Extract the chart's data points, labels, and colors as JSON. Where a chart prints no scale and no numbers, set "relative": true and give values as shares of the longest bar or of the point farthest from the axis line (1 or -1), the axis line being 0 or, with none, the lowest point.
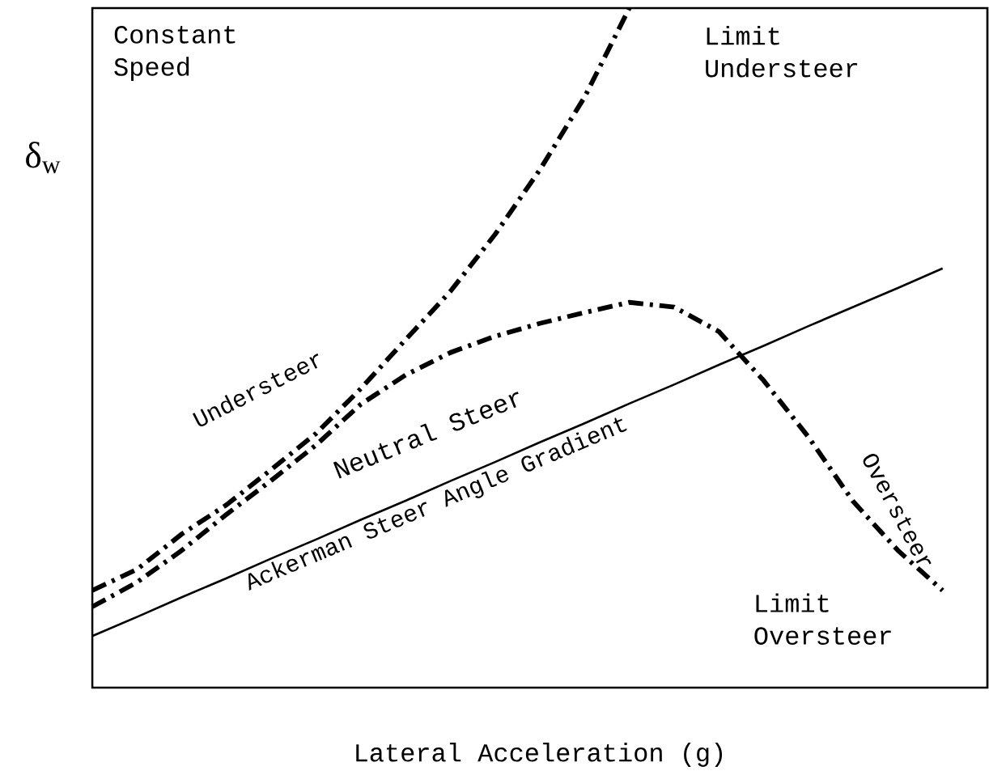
{
  "chart_data": {
    "type": "line",
    "relative": true,
    "xlabel": "Lateral Acceleration (g)",
    "ylabel": "δ$_{w}$",
    "categories": [
      null,
      null,
      null,
      null,
      null,
      null,
      null,
      null,
      null,
      null,
      null,
      null,
      null,
      null,
      null,
      null,
      null,
      null,
      null,
      null,
      null
    ],
    "series": [
      {
        "name": "Understeer",
        "color": "#000000",
        "line_style": "dashdot",
        "values": [
          0.143,
          0.174,
          0.226,
          0.269,
          0.321,
          0.374,
          0.44,
          0.512,
          0.583,
          0.667,
          0.762,
          0.869,
          1.0,
          null,
          null,
          null,
          null,
          null,
          null,
          null,
          null
        ]
      },
      {
        "name": "Oversteer",
        "color": "#000000",
        "line_style": "dashdot",
        "values": [
          0.119,
          0.155,
          0.202,
          0.255,
          0.305,
          0.357,
          0.417,
          0.46,
          0.493,
          0.517,
          0.536,
          0.552,
          0.567,
          0.56,
          0.524,
          0.452,
          0.369,
          0.274,
          0.202,
          0.143,
          null
        ]
      },
      {
        "name": "Ackerman Steer Angle Gradient",
        "color": "#000000",
        "line_style": "solid",
        "values": [
          0.076,
          0.104,
          0.133,
          0.161,
          0.19,
          0.218,
          0.247,
          0.275,
          0.304,
          0.332,
          0.361,
          0.389,
          0.418,
          0.446,
          0.475,
          0.503,
          0.532,
          0.56,
          0.588,
          0.617,
          null
        ]
      }
    ],
    "annotations": [
      "Constant Speed",
      "Limit Understeer",
      "Limit Oversteer",
      "Neutral Steer"
    ]
  }
}
